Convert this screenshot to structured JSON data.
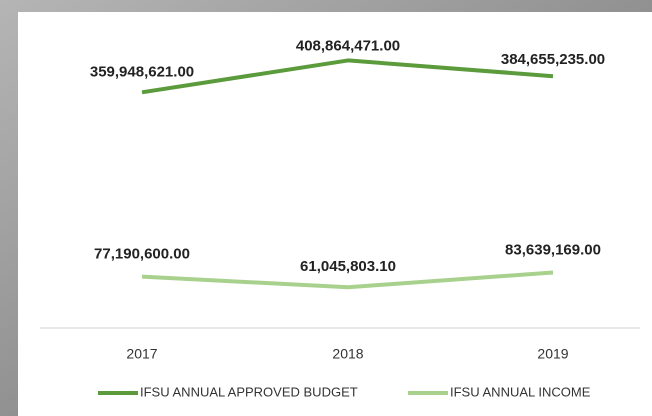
{
  "chart_data": {
    "type": "line",
    "categories": [
      "2017",
      "2018",
      "2019"
    ],
    "series": [
      {
        "name": "IFSU ANNUAL APPROVED BUDGET",
        "color": "#5b9b3c",
        "values": [
          359948621,
          408864471,
          384655235
        ],
        "value_labels": [
          "359,948,621.00",
          "408,864,471.00",
          "384,655,235.00"
        ]
      },
      {
        "name": "IFSU ANNUAL INCOME",
        "color": "#a9d18e",
        "values": [
          77190600,
          61045803.1,
          83639169
        ],
        "value_labels": [
          "77,190,600.00",
          "61,045,803.10",
          "83,639,169.00"
        ]
      }
    ],
    "ylim": [
      0,
      500000000
    ]
  }
}
